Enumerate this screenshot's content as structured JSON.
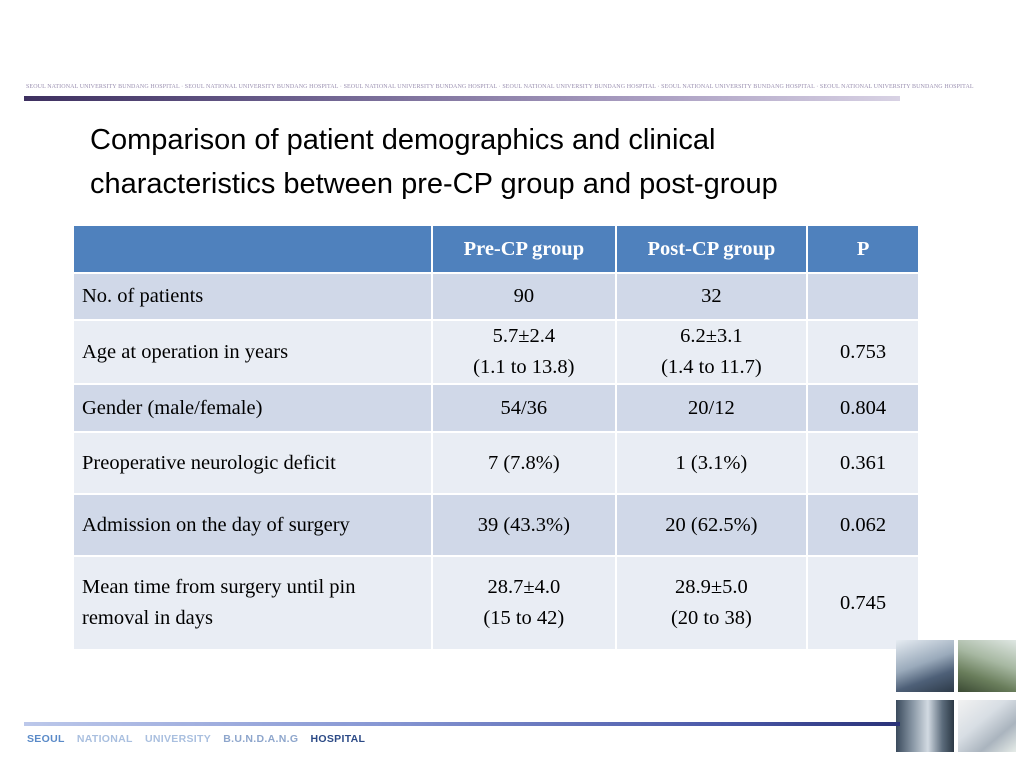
{
  "header": {
    "running_text": "SEOUL NATIONAL UNIVERSITY BUNDANG HOSPITAL  ·  SEOUL NATIONAL UNIVERSITY BUNDANG HOSPITAL  ·  SEOUL NATIONAL UNIVERSITY BUNDANG HOSPITAL  ·  SEOUL NATIONAL UNIVERSITY BUNDANG HOSPITAL  ·  SEOUL NATIONAL UNIVERSITY BUNDANG HOSPITAL  ·  SEOUL NATIONAL UNIVERSITY BUNDANG HOSPITAL"
  },
  "title": {
    "line1": "Comparison of patient demographics and clinical",
    "line2": "characteristics between pre-CP group and post-group"
  },
  "table": {
    "headers": [
      "",
      "Pre-CP group",
      "Post-CP group",
      "P"
    ],
    "rows": [
      {
        "label": "No. of patients",
        "pre": "90",
        "post": "32",
        "p": ""
      },
      {
        "label": "Age at operation in years",
        "pre_line1": "5.7±2.4",
        "pre_line2": "(1.1 to 13.8)",
        "post_line1": "6.2±3.1",
        "post_line2": "(1.4 to 11.7)",
        "p": "0.753"
      },
      {
        "label": "Gender (male/female)",
        "pre": "54/36",
        "post": "20/12",
        "p": "0.804"
      },
      {
        "label": "Preoperative neurologic deficit",
        "pre": "7 (7.8%)",
        "post": "1 (3.1%)",
        "p": "0.361"
      },
      {
        "label": "Admission on the day of surgery",
        "pre": "39 (43.3%)",
        "post": "20 (62.5%)",
        "p": "0.062"
      },
      {
        "label_line1": "Mean time from surgery until pin",
        "label_line2": "removal in days",
        "pre_line1": "28.7±4.0",
        "pre_line2": "(15 to 42)",
        "post_line1": "28.9±5.0",
        "post_line2": "(20 to 38)",
        "p": "0.745"
      }
    ]
  },
  "footer": {
    "words": [
      "SEOUL",
      "NATIONAL",
      "UNIVERSITY",
      "B.U.N.D.A.N.G",
      "HOSPITAL"
    ]
  },
  "colors": {
    "header_row": "#4f81bd",
    "row_dark": "#d0d8e8",
    "row_light": "#e9edf4"
  }
}
